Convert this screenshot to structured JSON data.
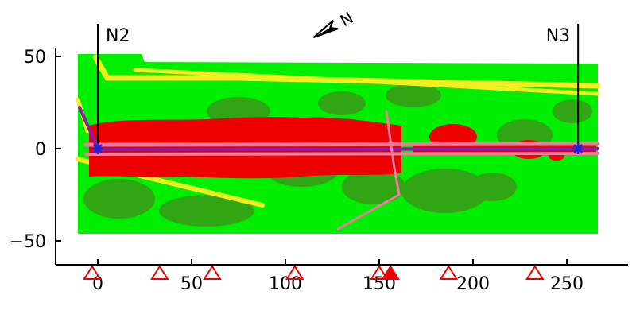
{
  "map": {
    "x_axis": {
      "range": [
        -22,
        270
      ],
      "ticks": [
        0,
        50,
        100,
        150,
        200,
        250
      ],
      "tick_labels": [
        "0",
        "50",
        "100",
        "150",
        "200",
        "250"
      ]
    },
    "y_axis": {
      "range": [
        -65,
        60
      ],
      "ticks": [
        50,
        0,
        -50
      ],
      "tick_labels": [
        "50",
        "0",
        "−50"
      ]
    },
    "stations": [
      {
        "label": "N2",
        "x": 0,
        "y": 0
      },
      {
        "label": "N3",
        "x": 256,
        "y": 0
      }
    ],
    "markers": [
      {
        "x": -3,
        "filled": false
      },
      {
        "x": 33,
        "filled": false
      },
      {
        "x": 61,
        "filled": false
      },
      {
        "x": 105,
        "filled": false
      },
      {
        "x": 150,
        "filled": false
      },
      {
        "x": 156,
        "filled": true
      },
      {
        "x": 187,
        "filled": false
      },
      {
        "x": 233,
        "filled": false
      }
    ],
    "north_arrow": {
      "symbol": "N",
      "direction": "northeast"
    },
    "colors": {
      "vegetation_light": "#00ee00",
      "vegetation_dark": "#3a9a18",
      "hotspot": "#ee0000",
      "road": "#f0f020",
      "line_pink": "#f07aa0",
      "line_purple": "#8a1aa8",
      "station_marker": "#2020e0",
      "triangle": "#ee0000"
    }
  }
}
